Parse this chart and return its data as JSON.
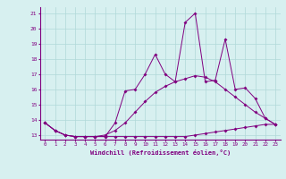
{
  "x": [
    0,
    1,
    2,
    3,
    4,
    5,
    6,
    7,
    8,
    9,
    10,
    11,
    12,
    13,
    14,
    15,
    16,
    17,
    18,
    19,
    20,
    21,
    22,
    23
  ],
  "line1": [
    13.8,
    13.3,
    13.0,
    12.9,
    12.9,
    12.9,
    12.9,
    12.9,
    12.9,
    12.9,
    12.9,
    12.9,
    12.9,
    12.9,
    12.9,
    13.0,
    13.1,
    13.2,
    13.3,
    13.4,
    13.5,
    13.6,
    13.7,
    13.7
  ],
  "line2": [
    13.8,
    13.3,
    13.0,
    12.9,
    12.9,
    12.9,
    13.0,
    13.3,
    13.8,
    14.5,
    15.2,
    15.8,
    16.2,
    16.5,
    16.7,
    16.9,
    16.8,
    16.5,
    16.0,
    15.5,
    15.0,
    14.5,
    14.1,
    13.7
  ],
  "line3": [
    13.8,
    13.3,
    13.0,
    12.9,
    12.9,
    12.9,
    12.9,
    13.8,
    15.9,
    16.0,
    17.0,
    18.3,
    17.0,
    16.5,
    20.4,
    21.0,
    16.5,
    16.6,
    19.3,
    16.0,
    16.1,
    15.4,
    14.1,
    13.7
  ],
  "line_color": "#800080",
  "bg_color": "#d7f0f0",
  "grid_color": "#b0d8d8",
  "xlabel": "Windchill (Refroidissement éolien,°C)",
  "ylabel_ticks": [
    13,
    14,
    15,
    16,
    17,
    18,
    19,
    20,
    21
  ],
  "xlim": [
    -0.5,
    23.5
  ],
  "ylim": [
    12.7,
    21.4
  ]
}
